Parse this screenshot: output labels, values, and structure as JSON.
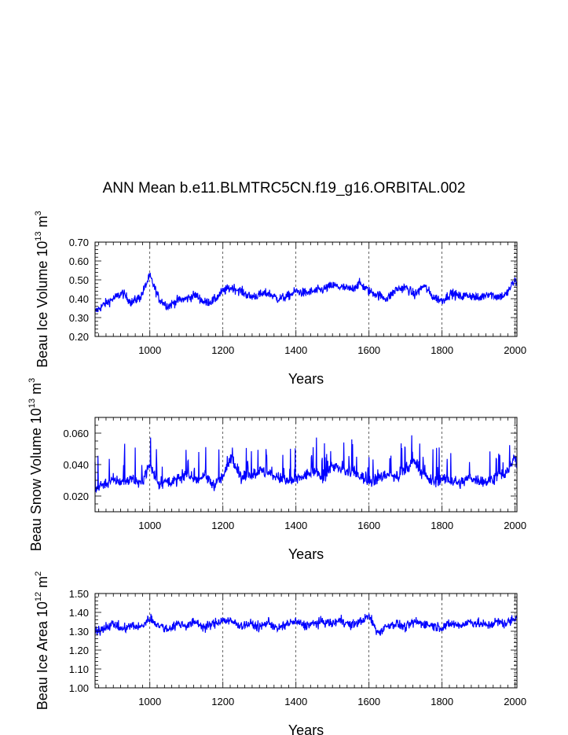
{
  "title": "ANN Mean b.e11.BLMTRC5CN.f19_g16.ORBITAL.002",
  "chart_data": [
    {
      "type": "line",
      "ylabel_text": "Beau Ice Volume 10",
      "ylabel_exp": "13",
      "ylabel_unit": " m",
      "ylabel_unit_exp": "3",
      "xlabel": "Years",
      "xlim": [
        850,
        2005
      ],
      "ylim": [
        0.2,
        0.7
      ],
      "xticks": [
        1000,
        1200,
        1400,
        1600,
        1800,
        2000
      ],
      "yticks": [
        "0.20",
        "0.30",
        "0.40",
        "0.50",
        "0.60",
        "0.70"
      ],
      "grid_x": "dashed vertical at major ticks",
      "color": "#0000ff",
      "series": [
        {
          "name": "Beau Ice Volume",
          "x": [
            850,
            875,
            900,
            925,
            950,
            975,
            1000,
            1025,
            1050,
            1075,
            1100,
            1125,
            1150,
            1175,
            1200,
            1225,
            1250,
            1275,
            1300,
            1325,
            1350,
            1375,
            1400,
            1425,
            1450,
            1475,
            1500,
            1525,
            1550,
            1575,
            1600,
            1625,
            1650,
            1675,
            1700,
            1725,
            1750,
            1775,
            1800,
            1825,
            1850,
            1875,
            1900,
            1925,
            1950,
            1975,
            2000,
            2005
          ],
          "values": [
            0.33,
            0.37,
            0.4,
            0.43,
            0.38,
            0.41,
            0.52,
            0.4,
            0.36,
            0.39,
            0.4,
            0.42,
            0.38,
            0.39,
            0.44,
            0.46,
            0.44,
            0.41,
            0.42,
            0.43,
            0.4,
            0.41,
            0.44,
            0.43,
            0.44,
            0.45,
            0.47,
            0.46,
            0.45,
            0.48,
            0.44,
            0.42,
            0.4,
            0.45,
            0.46,
            0.42,
            0.47,
            0.41,
            0.39,
            0.43,
            0.41,
            0.42,
            0.4,
            0.43,
            0.41,
            0.42,
            0.5,
            0.47
          ]
        }
      ]
    },
    {
      "type": "line",
      "ylabel_text": "Beau Snow Volume 10",
      "ylabel_exp": "13",
      "ylabel_unit": " m",
      "ylabel_unit_exp": "3",
      "xlabel": "Years",
      "xlim": [
        850,
        2005
      ],
      "ylim": [
        0.01,
        0.07
      ],
      "xticks": [
        1000,
        1200,
        1400,
        1600,
        1800,
        2000
      ],
      "yticks": [
        "0.020",
        "0.040",
        "0.060"
      ],
      "grid_x": "dashed vertical at major ticks",
      "color": "#0000ff",
      "series": [
        {
          "name": "Beau Snow Volume",
          "x": [
            850,
            875,
            900,
            925,
            950,
            975,
            1000,
            1025,
            1050,
            1075,
            1100,
            1125,
            1150,
            1175,
            1200,
            1225,
            1250,
            1275,
            1300,
            1325,
            1350,
            1375,
            1400,
            1425,
            1450,
            1475,
            1500,
            1525,
            1550,
            1575,
            1600,
            1625,
            1650,
            1675,
            1700,
            1725,
            1750,
            1775,
            1800,
            1825,
            1850,
            1875,
            1900,
            1925,
            1950,
            1975,
            2000,
            2005
          ],
          "values": [
            0.025,
            0.028,
            0.03,
            0.029,
            0.031,
            0.028,
            0.04,
            0.027,
            0.03,
            0.029,
            0.034,
            0.03,
            0.033,
            0.027,
            0.032,
            0.045,
            0.031,
            0.033,
            0.036,
            0.034,
            0.032,
            0.029,
            0.03,
            0.033,
            0.036,
            0.031,
            0.04,
            0.036,
            0.035,
            0.033,
            0.029,
            0.031,
            0.034,
            0.032,
            0.036,
            0.043,
            0.033,
            0.029,
            0.031,
            0.03,
            0.028,
            0.032,
            0.03,
            0.029,
            0.033,
            0.034,
            0.045,
            0.038
          ]
        }
      ]
    },
    {
      "type": "line",
      "ylabel_text": "Beau Ice Area 10",
      "ylabel_exp": "12",
      "ylabel_unit": " m",
      "ylabel_unit_exp": "2",
      "xlabel": "Years",
      "xlim": [
        850,
        2005
      ],
      "ylim": [
        1.0,
        1.5
      ],
      "xticks": [
        1000,
        1200,
        1400,
        1600,
        1800,
        2000
      ],
      "yticks": [
        "1.00",
        "1.10",
        "1.20",
        "1.30",
        "1.40",
        "1.50"
      ],
      "grid_x": "dashed vertical at major ticks",
      "color": "#0000ff",
      "series": [
        {
          "name": "Beau Ice Area",
          "x": [
            850,
            875,
            900,
            925,
            950,
            975,
            1000,
            1025,
            1050,
            1075,
            1100,
            1125,
            1150,
            1175,
            1200,
            1225,
            1250,
            1275,
            1300,
            1325,
            1350,
            1375,
            1400,
            1425,
            1450,
            1475,
            1500,
            1525,
            1550,
            1575,
            1600,
            1625,
            1650,
            1675,
            1700,
            1725,
            1750,
            1775,
            1800,
            1825,
            1850,
            1875,
            1900,
            1925,
            1950,
            1975,
            2000,
            2005
          ],
          "values": [
            1.29,
            1.32,
            1.34,
            1.31,
            1.33,
            1.32,
            1.37,
            1.33,
            1.31,
            1.34,
            1.33,
            1.35,
            1.32,
            1.34,
            1.36,
            1.35,
            1.33,
            1.34,
            1.32,
            1.35,
            1.31,
            1.34,
            1.35,
            1.33,
            1.34,
            1.35,
            1.34,
            1.36,
            1.33,
            1.35,
            1.38,
            1.29,
            1.33,
            1.34,
            1.32,
            1.35,
            1.34,
            1.33,
            1.32,
            1.34,
            1.33,
            1.35,
            1.34,
            1.33,
            1.35,
            1.34,
            1.37,
            1.39
          ]
        }
      ]
    }
  ]
}
